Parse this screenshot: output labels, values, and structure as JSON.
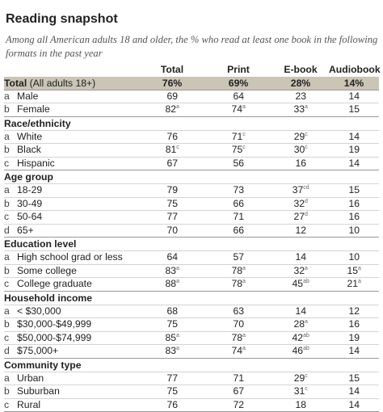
{
  "title": "Reading snapshot",
  "subtitle": "Among all American adults 18 and older, the % who read at least one book in the following formats in the past year",
  "columns": [
    "Total",
    "Print",
    "E-book",
    "Audiobook"
  ],
  "total_row": {
    "label": "Total",
    "label_note": "(All adults 18+)",
    "values": [
      "76%",
      "69%",
      "28%",
      "14%"
    ]
  },
  "sections": [
    {
      "name": "",
      "rows": [
        {
          "letter": "a",
          "label": "Male",
          "values": [
            {
              "v": "69",
              "s": ""
            },
            {
              "v": "64",
              "s": ""
            },
            {
              "v": "23",
              "s": ""
            },
            {
              "v": "14",
              "s": ""
            }
          ]
        },
        {
          "letter": "b",
          "label": "Female",
          "values": [
            {
              "v": "82",
              "s": "a"
            },
            {
              "v": "74",
              "s": "a"
            },
            {
              "v": "33",
              "s": "a"
            },
            {
              "v": "15",
              "s": ""
            }
          ]
        }
      ]
    },
    {
      "name": "Race/ethnicity",
      "rows": [
        {
          "letter": "a",
          "label": "White",
          "values": [
            {
              "v": "76",
              "s": ""
            },
            {
              "v": "71",
              "s": "c"
            },
            {
              "v": "29",
              "s": "c"
            },
            {
              "v": "14",
              "s": ""
            }
          ]
        },
        {
          "letter": "b",
          "label": "Black",
          "values": [
            {
              "v": "81",
              "s": "c"
            },
            {
              "v": "75",
              "s": "c"
            },
            {
              "v": "30",
              "s": "c"
            },
            {
              "v": "19",
              "s": ""
            }
          ]
        },
        {
          "letter": "c",
          "label": "Hispanic",
          "values": [
            {
              "v": "67",
              "s": ""
            },
            {
              "v": "56",
              "s": ""
            },
            {
              "v": "16",
              "s": ""
            },
            {
              "v": "14",
              "s": ""
            }
          ]
        }
      ]
    },
    {
      "name": "Age group",
      "rows": [
        {
          "letter": "a",
          "label": "18-29",
          "values": [
            {
              "v": "79",
              "s": ""
            },
            {
              "v": "73",
              "s": ""
            },
            {
              "v": "37",
              "s": "cd"
            },
            {
              "v": "15",
              "s": ""
            }
          ]
        },
        {
          "letter": "b",
          "label": "30-49",
          "values": [
            {
              "v": "75",
              "s": ""
            },
            {
              "v": "66",
              "s": ""
            },
            {
              "v": "32",
              "s": "d"
            },
            {
              "v": "16",
              "s": ""
            }
          ]
        },
        {
          "letter": "c",
          "label": "50-64",
          "values": [
            {
              "v": "77",
              "s": ""
            },
            {
              "v": "71",
              "s": ""
            },
            {
              "v": "27",
              "s": "d"
            },
            {
              "v": "16",
              "s": ""
            }
          ]
        },
        {
          "letter": "d",
          "label": "65+",
          "values": [
            {
              "v": "70",
              "s": ""
            },
            {
              "v": "66",
              "s": ""
            },
            {
              "v": "12",
              "s": ""
            },
            {
              "v": "10",
              "s": ""
            }
          ]
        }
      ]
    },
    {
      "name": "Education level",
      "rows": [
        {
          "letter": "a",
          "label": "High school grad or less",
          "values": [
            {
              "v": "64",
              "s": ""
            },
            {
              "v": "57",
              "s": ""
            },
            {
              "v": "14",
              "s": ""
            },
            {
              "v": "10",
              "s": ""
            }
          ]
        },
        {
          "letter": "b",
          "label": "Some college",
          "values": [
            {
              "v": "83",
              "s": "a"
            },
            {
              "v": "78",
              "s": "a"
            },
            {
              "v": "32",
              "s": "a"
            },
            {
              "v": "15",
              "s": "a"
            }
          ]
        },
        {
          "letter": "c",
          "label": "College graduate",
          "values": [
            {
              "v": "88",
              "s": "a"
            },
            {
              "v": "78",
              "s": "a"
            },
            {
              "v": "45",
              "s": "ab"
            },
            {
              "v": "21",
              "s": "a"
            }
          ]
        }
      ]
    },
    {
      "name": "Household income",
      "rows": [
        {
          "letter": "a",
          "label": "< $30,000",
          "values": [
            {
              "v": "68",
              "s": ""
            },
            {
              "v": "63",
              "s": ""
            },
            {
              "v": "14",
              "s": ""
            },
            {
              "v": "12",
              "s": ""
            }
          ]
        },
        {
          "letter": "b",
          "label": "$30,000-$49,999",
          "values": [
            {
              "v": "75",
              "s": ""
            },
            {
              "v": "70",
              "s": ""
            },
            {
              "v": "28",
              "s": "a"
            },
            {
              "v": "16",
              "s": ""
            }
          ]
        },
        {
          "letter": "c",
          "label": "$50,000-$74,999",
          "values": [
            {
              "v": "85",
              "s": "a"
            },
            {
              "v": "78",
              "s": "a"
            },
            {
              "v": "42",
              "s": "ab"
            },
            {
              "v": "19",
              "s": ""
            }
          ]
        },
        {
          "letter": "d",
          "label": "$75,000+",
          "values": [
            {
              "v": "83",
              "s": "a"
            },
            {
              "v": "74",
              "s": "a"
            },
            {
              "v": "46",
              "s": "ab"
            },
            {
              "v": "14",
              "s": ""
            }
          ]
        }
      ]
    },
    {
      "name": "Community type",
      "rows": [
        {
          "letter": "a",
          "label": "Urban",
          "values": [
            {
              "v": "77",
              "s": ""
            },
            {
              "v": "71",
              "s": ""
            },
            {
              "v": "29",
              "s": "c"
            },
            {
              "v": "15",
              "s": ""
            }
          ]
        },
        {
          "letter": "b",
          "label": "Suburban",
          "values": [
            {
              "v": "75",
              "s": ""
            },
            {
              "v": "67",
              "s": ""
            },
            {
              "v": "31",
              "s": "c"
            },
            {
              "v": "14",
              "s": ""
            }
          ]
        },
        {
          "letter": "c",
          "label": "Rural",
          "values": [
            {
              "v": "76",
              "s": ""
            },
            {
              "v": "72",
              "s": ""
            },
            {
              "v": "18",
              "s": ""
            },
            {
              "v": "14",
              "s": ""
            }
          ]
        }
      ]
    }
  ]
}
